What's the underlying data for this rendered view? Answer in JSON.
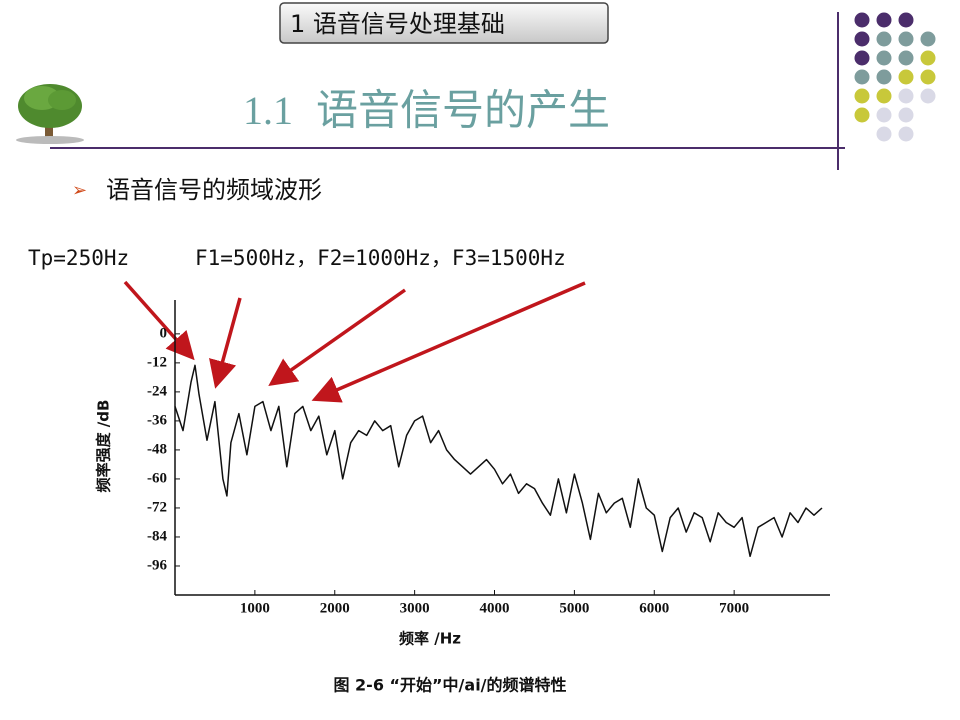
{
  "slide": {
    "header": "1 语音信号处理基础",
    "title_number": "1.1",
    "title": "语音信号的产生",
    "bullet": "语音信号的频域波形"
  },
  "chart_data": {
    "type": "line",
    "title": "图 2-6 “开始”中/ai/的频谱特性",
    "xlabel": "频率 /Hz",
    "ylabel": "频率强度 /dB",
    "annotations": [
      "Tp=250Hz",
      "F1=500Hz，F2=1000Hz，F3=1500Hz"
    ],
    "color": "#111111",
    "x": [
      0,
      100,
      200,
      250,
      300,
      400,
      500,
      600,
      650,
      700,
      800,
      900,
      1000,
      1100,
      1200,
      1300,
      1400,
      1500,
      1600,
      1700,
      1800,
      1900,
      2000,
      2100,
      2200,
      2300,
      2400,
      2500,
      2600,
      2700,
      2800,
      2900,
      3000,
      3100,
      3200,
      3300,
      3400,
      3500,
      3600,
      3700,
      3800,
      3900,
      4000,
      4100,
      4200,
      4300,
      4400,
      4500,
      4600,
      4700,
      4800,
      4900,
      5000,
      5100,
      5200,
      5300,
      5400,
      5500,
      5600,
      5700,
      5800,
      5900,
      6000,
      6100,
      6200,
      6300,
      6400,
      6500,
      6600,
      6700,
      6800,
      6900,
      7000,
      7100,
      7200,
      7300,
      7400,
      7500,
      7600,
      7700,
      7800,
      7900,
      8000,
      8100
    ],
    "values": [
      -30,
      -40,
      -20,
      -13,
      -25,
      -44,
      -28,
      -60,
      -67,
      -45,
      -33,
      -50,
      -30,
      -28,
      -40,
      -30,
      -55,
      -33,
      -30,
      -40,
      -34,
      -50,
      -40,
      -60,
      -45,
      -40,
      -42,
      -36,
      -40,
      -38,
      -55,
      -42,
      -36,
      -34,
      -45,
      -40,
      -48,
      -52,
      -55,
      -58,
      -55,
      -52,
      -56,
      -62,
      -58,
      -66,
      -62,
      -64,
      -70,
      -75,
      -60,
      -74,
      -58,
      -70,
      -85,
      -66,
      -74,
      -70,
      -68,
      -80,
      -60,
      -72,
      -75,
      -90,
      -76,
      -72,
      -82,
      -74,
      -76,
      -86,
      -74,
      -78,
      -80,
      -76,
      -92,
      -80,
      -78,
      -76,
      -84,
      -74,
      -78,
      -72,
      -75,
      -72
    ],
    "xlim": [
      0,
      8200
    ],
    "ylim": [
      -108,
      14
    ],
    "xticks": [
      1000,
      2000,
      3000,
      4000,
      5000,
      6000,
      7000
    ],
    "yticks": [
      0,
      -12,
      -24,
      -36,
      -48,
      -60,
      -72,
      -84,
      -96
    ]
  }
}
